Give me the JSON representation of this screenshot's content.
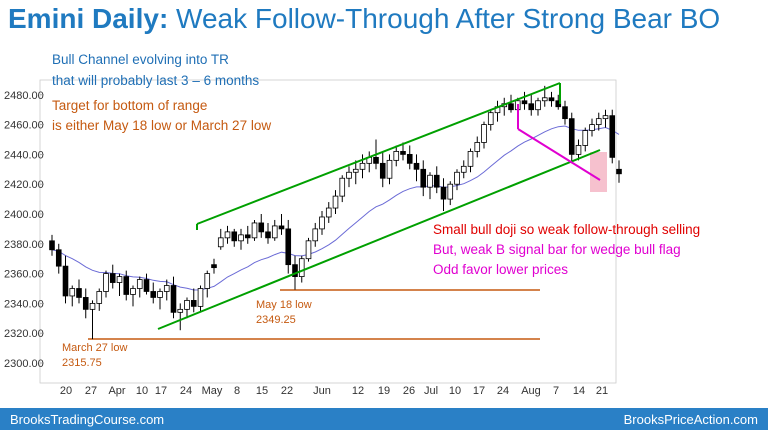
{
  "title": {
    "bold": "Emini Daily:",
    "rest": " Weak Follow-Through After Strong Bear BO"
  },
  "colors": {
    "title": "#1f7ac0",
    "blue_text": "#1f6fb5",
    "orange_text": "#c55a11",
    "red_text": "#e00000",
    "magenta": "#e000d0",
    "green_line": "#00a000",
    "ma_line": "#6b6bd6",
    "level_line": "#c55a11",
    "footer": "#2a80c6",
    "highlight": "#f4b6c6"
  },
  "annotations": {
    "blue_1": "Bull Channel evolving into TR",
    "blue_2": "that will probably last 3 – 6  months",
    "orange_1": "Target for bottom of range",
    "orange_2": "is either May 18 low or March 27 low",
    "red": "Small bull doji so weak follow-through selling",
    "magenta_1": "But, weak B signal bar for wedge bull flag",
    "magenta_2": "Odd favor lower prices",
    "may18_label": "May 18 low",
    "may18_value": "2349.25",
    "mar27_label": "March 27 low",
    "mar27_value": "2315.75"
  },
  "footer": {
    "left": "BrooksTradingCourse.com",
    "right": "BrooksPriceAction.com"
  },
  "chart_data": {
    "type": "candlestick",
    "ylim": [
      2290,
      2495
    ],
    "y_ticks": [
      "2300.00",
      "2320.00",
      "2340.00",
      "2360.00",
      "2380.00",
      "2400.00",
      "2420.00",
      "2440.00",
      "2460.00",
      "2480.00"
    ],
    "x_ticks": [
      "20",
      "27",
      "Apr",
      "10",
      "17",
      "24",
      "May",
      "8",
      "15",
      "22",
      "Jun",
      "12",
      "19",
      "26",
      "Jul",
      "10",
      "17",
      "24",
      "Aug",
      "7",
      "14",
      "21"
    ],
    "levels": [
      {
        "name": "May 18 low",
        "value": 2349.25
      },
      {
        "name": "March 27 low",
        "value": 2315.75
      }
    ],
    "bars": [
      [
        2382,
        2386,
        2372,
        2376
      ],
      [
        2376,
        2380,
        2360,
        2365
      ],
      [
        2365,
        2372,
        2340,
        2345
      ],
      [
        2345,
        2352,
        2338,
        2350
      ],
      [
        2350,
        2356,
        2340,
        2344
      ],
      [
        2344,
        2350,
        2330,
        2336
      ],
      [
        2336,
        2342,
        2316,
        2340
      ],
      [
        2340,
        2350,
        2335,
        2348
      ],
      [
        2348,
        2362,
        2344,
        2360
      ],
      [
        2360,
        2366,
        2350,
        2354
      ],
      [
        2354,
        2360,
        2345,
        2358
      ],
      [
        2358,
        2362,
        2342,
        2346
      ],
      [
        2346,
        2352,
        2338,
        2350
      ],
      [
        2350,
        2358,
        2344,
        2356
      ],
      [
        2356,
        2360,
        2346,
        2348
      ],
      [
        2348,
        2354,
        2340,
        2344
      ],
      [
        2344,
        2350,
        2336,
        2348
      ],
      [
        2348,
        2356,
        2342,
        2352
      ],
      [
        2352,
        2358,
        2330,
        2334
      ],
      [
        2334,
        2340,
        2322,
        2336
      ],
      [
        2336,
        2344,
        2330,
        2342
      ],
      [
        2342,
        2350,
        2334,
        2338
      ],
      [
        2338,
        2352,
        2334,
        2350
      ],
      [
        2350,
        2362,
        2344,
        2360
      ],
      [
        2366,
        2370,
        2360,
        2364
      ],
      [
        2378,
        2390,
        2376,
        2384
      ],
      [
        2384,
        2392,
        2380,
        2388
      ],
      [
        2388,
        2390,
        2378,
        2382
      ],
      [
        2382,
        2390,
        2376,
        2386
      ],
      [
        2386,
        2392,
        2380,
        2384
      ],
      [
        2384,
        2396,
        2382,
        2394
      ],
      [
        2394,
        2400,
        2384,
        2388
      ],
      [
        2388,
        2394,
        2380,
        2384
      ],
      [
        2384,
        2396,
        2382,
        2392
      ],
      [
        2392,
        2400,
        2386,
        2390
      ],
      [
        2390,
        2396,
        2360,
        2366
      ],
      [
        2366,
        2372,
        2349.25,
        2358
      ],
      [
        2358,
        2372,
        2354,
        2370
      ],
      [
        2370,
        2384,
        2368,
        2382
      ],
      [
        2382,
        2394,
        2378,
        2390
      ],
      [
        2390,
        2402,
        2386,
        2398
      ],
      [
        2398,
        2408,
        2394,
        2404
      ],
      [
        2404,
        2416,
        2400,
        2412
      ],
      [
        2412,
        2426,
        2408,
        2424
      ],
      [
        2424,
        2432,
        2418,
        2428
      ],
      [
        2428,
        2436,
        2420,
        2430
      ],
      [
        2430,
        2440,
        2424,
        2434
      ],
      [
        2434,
        2442,
        2428,
        2438
      ],
      [
        2438,
        2450,
        2430,
        2434
      ],
      [
        2434,
        2442,
        2418,
        2424
      ],
      [
        2424,
        2440,
        2420,
        2436
      ],
      [
        2436,
        2446,
        2432,
        2442
      ],
      [
        2442,
        2448,
        2436,
        2440
      ],
      [
        2440,
        2446,
        2430,
        2434
      ],
      [
        2434,
        2440,
        2422,
        2430
      ],
      [
        2430,
        2436,
        2412,
        2418
      ],
      [
        2418,
        2428,
        2410,
        2426
      ],
      [
        2426,
        2432,
        2414,
        2418
      ],
      [
        2418,
        2424,
        2402,
        2410
      ],
      [
        2410,
        2422,
        2406,
        2420
      ],
      [
        2420,
        2430,
        2416,
        2428
      ],
      [
        2428,
        2436,
        2424,
        2432
      ],
      [
        2432,
        2444,
        2428,
        2442
      ],
      [
        2442,
        2452,
        2438,
        2448
      ],
      [
        2448,
        2462,
        2444,
        2460
      ],
      [
        2460,
        2470,
        2456,
        2468
      ],
      [
        2468,
        2476,
        2462,
        2472
      ],
      [
        2472,
        2478,
        2466,
        2474
      ],
      [
        2474,
        2480,
        2468,
        2470
      ],
      [
        2470,
        2478,
        2466,
        2476
      ],
      [
        2476,
        2482,
        2470,
        2474
      ],
      [
        2474,
        2480,
        2466,
        2470
      ],
      [
        2470,
        2478,
        2466,
        2476
      ],
      [
        2476,
        2486,
        2472,
        2478
      ],
      [
        2478,
        2482,
        2472,
        2476
      ],
      [
        2476,
        2480,
        2470,
        2472
      ],
      [
        2472,
        2476,
        2460,
        2464
      ],
      [
        2464,
        2468,
        2434,
        2440
      ],
      [
        2440,
        2450,
        2436,
        2446
      ],
      [
        2446,
        2458,
        2442,
        2456
      ],
      [
        2456,
        2464,
        2452,
        2460
      ],
      [
        2460,
        2468,
        2456,
        2464
      ],
      [
        2464,
        2470,
        2458,
        2466
      ],
      [
        2466,
        2470,
        2434,
        2438
      ],
      [
        2430,
        2436,
        2421,
        2427
      ]
    ]
  }
}
